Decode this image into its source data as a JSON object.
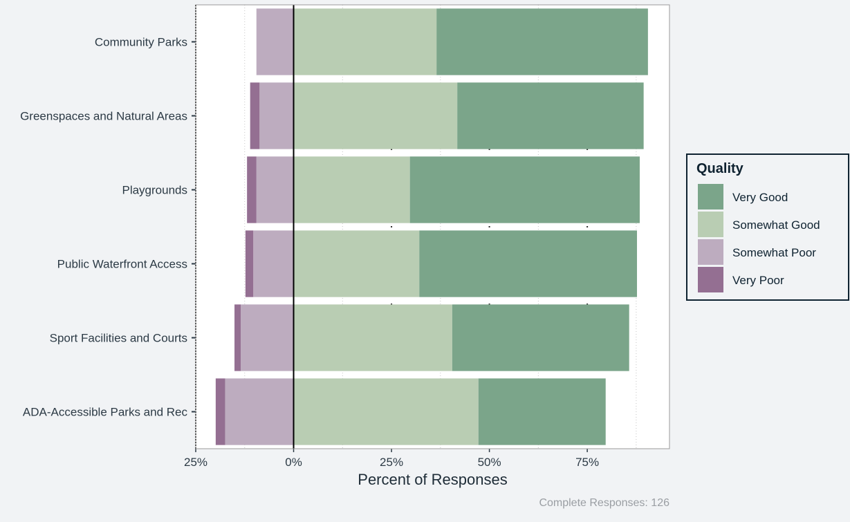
{
  "chart_data": {
    "type": "bar",
    "orientation": "horizontal-diverging",
    "categories": [
      "Community Parks",
      "Greenspaces and Natural Areas",
      "Playgrounds",
      "Public Waterfront Access",
      "Sport Facilities and Courts",
      "ADA-Accessible Parks and Rec"
    ],
    "series": [
      {
        "name": "Very Good",
        "color": "#7ba58a",
        "side": "positive",
        "values": [
          54.0,
          47.6,
          58.7,
          55.6,
          45.2,
          32.5
        ]
      },
      {
        "name": "Somewhat Good",
        "color": "#b9cdb3",
        "side": "positive",
        "values": [
          36.5,
          41.8,
          29.7,
          32.1,
          40.5,
          47.2
        ]
      },
      {
        "name": "Somewhat Poor",
        "color": "#bdacbf",
        "side": "negative",
        "values": [
          9.5,
          8.7,
          9.5,
          10.3,
          13.5,
          17.5
        ]
      },
      {
        "name": "Very Poor",
        "color": "#946f92",
        "side": "negative",
        "values": [
          0.0,
          2.4,
          2.4,
          2.0,
          1.6,
          2.4
        ]
      }
    ],
    "xlabel": "Percent of Responses",
    "xlim": [
      -25,
      96
    ],
    "x_ticks": [
      -25,
      0,
      25,
      50,
      75
    ],
    "x_tick_labels": [
      "25%",
      "0%",
      "25%",
      "50%",
      "75%"
    ],
    "minor_gridlines": [
      -12.5,
      12.5,
      37.5,
      62.5,
      87.5
    ],
    "grid": true,
    "legend": {
      "title": "Quality",
      "placement": "right",
      "entries": [
        "Very Good",
        "Somewhat Good",
        "Somewhat Poor",
        "Very Poor"
      ]
    },
    "caption": "Complete Responses: 126"
  }
}
